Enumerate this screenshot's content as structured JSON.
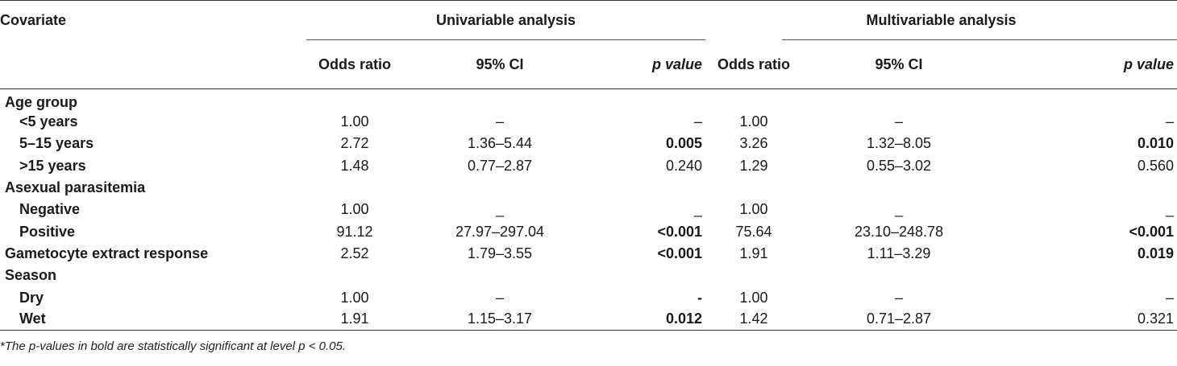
{
  "header": {
    "covariate": "Covariate",
    "univariable": "Univariable analysis",
    "multivariable": "Multivariable analysis",
    "odds_ratio": "Odds ratio",
    "ci": "95% CI",
    "p_value": "p value"
  },
  "rows": [
    {
      "label": "Age group",
      "group": true
    },
    {
      "label": "<5 years",
      "u_or": "1.00",
      "u_ci": "–",
      "u_p": "–",
      "u_p_bold": false,
      "m_or": "1.00",
      "m_ci": "–",
      "m_p": "–",
      "m_p_bold": false
    },
    {
      "label": "5–15 years",
      "u_or": "2.72",
      "u_ci": "1.36–5.44",
      "u_p": "0.005",
      "u_p_bold": true,
      "m_or": "3.26",
      "m_ci": "1.32–8.05",
      "m_p": "0.010",
      "m_p_bold": true
    },
    {
      "label": ">15 years",
      "u_or": "1.48",
      "u_ci": "0.77–2.87",
      "u_p": "0.240",
      "u_p_bold": false,
      "m_or": "1.29",
      "m_ci": "0.55–3.02",
      "m_p": "0.560",
      "m_p_bold": false
    },
    {
      "label": "Asexual parasitemia",
      "group": true
    },
    {
      "label": "Negative",
      "u_or": "1.00",
      "u_ci": "_",
      "u_p": "_",
      "u_p_bold": false,
      "m_or": "1.00",
      "m_ci": "_",
      "m_p": "_",
      "m_p_bold": false
    },
    {
      "label": "Positive",
      "u_or": "91.12",
      "u_ci": "27.97–297.04",
      "u_p": "<0.001",
      "u_p_bold": true,
      "m_or": "75.64",
      "m_ci": "23.10–248.78",
      "m_p": "<0.001",
      "m_p_bold": true
    },
    {
      "label": "Gametocyte extract response",
      "group_inline": true,
      "u_or": "2.52",
      "u_ci": "1.79–3.55",
      "u_p": "<0.001",
      "u_p_bold": true,
      "m_or": "1.91",
      "m_ci": "1.11–3.29",
      "m_p": "0.019",
      "m_p_bold": true
    },
    {
      "label": "Season",
      "group": true
    },
    {
      "label": "Dry",
      "u_or": "1.00",
      "u_ci": "–",
      "u_p": "-",
      "u_p_bold": true,
      "m_or": "1.00",
      "m_ci": "–",
      "m_p": "–",
      "m_p_bold": false
    },
    {
      "label": "Wet",
      "u_or": "1.91",
      "u_ci": "1.15–3.17",
      "u_p": "0.012",
      "u_p_bold": true,
      "m_or": "1.42",
      "m_ci": "0.71–2.87",
      "m_p": "0.321",
      "m_p_bold": false
    }
  ],
  "footnote": "*The p-values in bold are statistically significant at level p < 0.05."
}
